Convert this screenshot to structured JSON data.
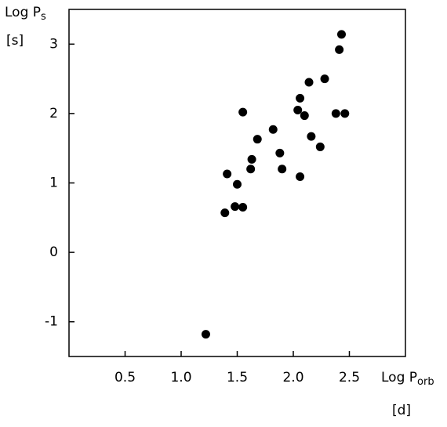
{
  "chart_data": {
    "type": "scatter",
    "y_label": "Log P",
    "y_label_sub": "s",
    "y_unit": "[s]",
    "x_label": "Log P",
    "x_label_sub": "orb",
    "x_unit": "[d]",
    "x": [
      1.22,
      1.39,
      1.41,
      1.48,
      1.5,
      1.55,
      1.55,
      1.62,
      1.63,
      1.68,
      1.82,
      1.88,
      1.9,
      2.04,
      2.06,
      2.06,
      2.1,
      2.14,
      2.16,
      2.24,
      2.28,
      2.38,
      2.41,
      2.43,
      2.46
    ],
    "values": [
      -1.18,
      0.57,
      1.13,
      0.66,
      0.98,
      0.65,
      2.02,
      1.2,
      1.34,
      1.63,
      1.77,
      1.43,
      1.2,
      2.05,
      2.22,
      1.09,
      1.97,
      2.45,
      1.67,
      1.52,
      2.5,
      2.0,
      2.92,
      3.14,
      2.0
    ],
    "color": "#000000",
    "xlim": [
      0,
      3
    ],
    "xticks": [
      0.5,
      {
        "value": 1,
        "label": "1.0"
      },
      1.5,
      {
        "value": 2,
        "label": "2.0"
      },
      2.5
    ],
    "ylim": [
      -1.5,
      3.5
    ],
    "yticks": [
      -1,
      0,
      1,
      2,
      3
    ]
  }
}
